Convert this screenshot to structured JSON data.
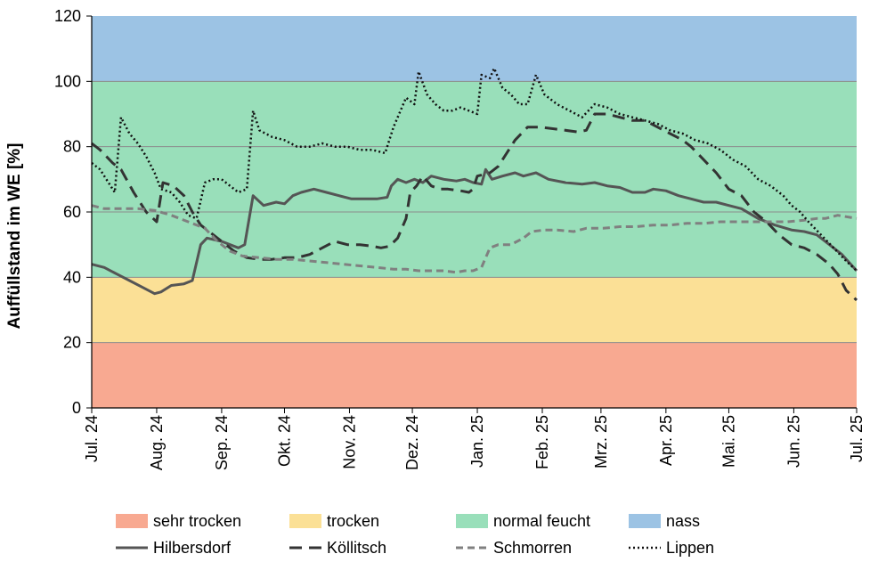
{
  "chart_data": {
    "type": "line",
    "title": "",
    "ylabel": "Auffüllstand im WE [%]",
    "xlabel": "",
    "ylim": [
      0,
      120
    ],
    "yticks": [
      0,
      20,
      40,
      60,
      80,
      100,
      120
    ],
    "xlim": [
      0,
      365
    ],
    "xticks": [
      {
        "day": 0,
        "label": "Jul. 24"
      },
      {
        "day": 31,
        "label": "Aug. 24"
      },
      {
        "day": 62,
        "label": "Sep. 24"
      },
      {
        "day": 92,
        "label": "Okt. 24"
      },
      {
        "day": 123,
        "label": "Nov. 24"
      },
      {
        "day": 153,
        "label": "Dez. 24"
      },
      {
        "day": 184,
        "label": "Jan. 25"
      },
      {
        "day": 215,
        "label": "Feb. 25"
      },
      {
        "day": 243,
        "label": "Mrz. 25"
      },
      {
        "day": 274,
        "label": "Apr. 25"
      },
      {
        "day": 304,
        "label": "Mai. 25"
      },
      {
        "day": 335,
        "label": "Jun. 25"
      },
      {
        "day": 365,
        "label": "Jul. 25"
      }
    ],
    "bands": [
      {
        "name": "sehr trocken",
        "from": 0,
        "to": 20,
        "color": "#f8a991"
      },
      {
        "name": "trocken",
        "from": 20,
        "to": 40,
        "color": "#fbe096"
      },
      {
        "name": "normal feucht",
        "from": 40,
        "to": 100,
        "color": "#99dfba"
      },
      {
        "name": "nass",
        "from": 100,
        "to": 120,
        "color": "#9cc3e4"
      }
    ],
    "series": [
      {
        "name": "Hilbersdorf",
        "color": "#555555",
        "dash": "",
        "width": 3,
        "points": [
          [
            0,
            44
          ],
          [
            6,
            43
          ],
          [
            12,
            41
          ],
          [
            18,
            39
          ],
          [
            24,
            37
          ],
          [
            30,
            35
          ],
          [
            33,
            35.5
          ],
          [
            38,
            37.5
          ],
          [
            44,
            38
          ],
          [
            48,
            39
          ],
          [
            52,
            50
          ],
          [
            55,
            52
          ],
          [
            62,
            51
          ],
          [
            66,
            50
          ],
          [
            70,
            49
          ],
          [
            73,
            50
          ],
          [
            77,
            65
          ],
          [
            82,
            62
          ],
          [
            88,
            63
          ],
          [
            92,
            62.5
          ],
          [
            96,
            65
          ],
          [
            100,
            66
          ],
          [
            106,
            67
          ],
          [
            112,
            66
          ],
          [
            118,
            65
          ],
          [
            124,
            64
          ],
          [
            130,
            64
          ],
          [
            136,
            64
          ],
          [
            141,
            64.5
          ],
          [
            143,
            68
          ],
          [
            146,
            70
          ],
          [
            150,
            69
          ],
          [
            154,
            70
          ],
          [
            158,
            69
          ],
          [
            162,
            71
          ],
          [
            168,
            70
          ],
          [
            174,
            69.5
          ],
          [
            178,
            70
          ],
          [
            182,
            69
          ],
          [
            186,
            68.5
          ],
          [
            188,
            73
          ],
          [
            191,
            70
          ],
          [
            196,
            71
          ],
          [
            202,
            72
          ],
          [
            206,
            71
          ],
          [
            212,
            72
          ],
          [
            218,
            70
          ],
          [
            226,
            69
          ],
          [
            234,
            68.5
          ],
          [
            240,
            69
          ],
          [
            246,
            68
          ],
          [
            252,
            67.5
          ],
          [
            258,
            66
          ],
          [
            264,
            66
          ],
          [
            268,
            67
          ],
          [
            274,
            66.5
          ],
          [
            280,
            65
          ],
          [
            286,
            64
          ],
          [
            292,
            63
          ],
          [
            298,
            63
          ],
          [
            304,
            62
          ],
          [
            310,
            61
          ],
          [
            318,
            58
          ],
          [
            326,
            56
          ],
          [
            334,
            54.5
          ],
          [
            340,
            54
          ],
          [
            346,
            53
          ],
          [
            352,
            50
          ],
          [
            358,
            47
          ],
          [
            365,
            42
          ]
        ]
      },
      {
        "name": "Köllitsch",
        "color": "#333333",
        "dash": "14 8",
        "width": 3,
        "points": [
          [
            0,
            81
          ],
          [
            4,
            79
          ],
          [
            10,
            75
          ],
          [
            14,
            73
          ],
          [
            20,
            66
          ],
          [
            26,
            60
          ],
          [
            31,
            57
          ],
          [
            34,
            69
          ],
          [
            39,
            68
          ],
          [
            44,
            65
          ],
          [
            48,
            60
          ],
          [
            52,
            56
          ],
          [
            56,
            54
          ],
          [
            60,
            52
          ],
          [
            64,
            50
          ],
          [
            68,
            48
          ],
          [
            74,
            46
          ],
          [
            80,
            45.5
          ],
          [
            86,
            45.5
          ],
          [
            92,
            46
          ],
          [
            98,
            46
          ],
          [
            104,
            47
          ],
          [
            110,
            49
          ],
          [
            116,
            51
          ],
          [
            122,
            50
          ],
          [
            128,
            50
          ],
          [
            134,
            49.5
          ],
          [
            138,
            49
          ],
          [
            142,
            49.5
          ],
          [
            146,
            52
          ],
          [
            150,
            58
          ],
          [
            152,
            66
          ],
          [
            155,
            68
          ],
          [
            158,
            71
          ],
          [
            162,
            68
          ],
          [
            166,
            67
          ],
          [
            170,
            67
          ],
          [
            176,
            66.5
          ],
          [
            180,
            66
          ],
          [
            182,
            67
          ],
          [
            184,
            71
          ],
          [
            190,
            72
          ],
          [
            194,
            74
          ],
          [
            198,
            78
          ],
          [
            202,
            82
          ],
          [
            205,
            84
          ],
          [
            208,
            86
          ],
          [
            214,
            86
          ],
          [
            220,
            85.5
          ],
          [
            226,
            85
          ],
          [
            232,
            84.5
          ],
          [
            236,
            85
          ],
          [
            240,
            90
          ],
          [
            246,
            90
          ],
          [
            252,
            89
          ],
          [
            258,
            88
          ],
          [
            264,
            88
          ],
          [
            270,
            86
          ],
          [
            276,
            84
          ],
          [
            282,
            82
          ],
          [
            286,
            80
          ],
          [
            292,
            76
          ],
          [
            298,
            72
          ],
          [
            304,
            67
          ],
          [
            310,
            65
          ],
          [
            316,
            60
          ],
          [
            322,
            57
          ],
          [
            328,
            53
          ],
          [
            334,
            50
          ],
          [
            340,
            49
          ],
          [
            346,
            47
          ],
          [
            352,
            44
          ],
          [
            356,
            41
          ],
          [
            360,
            36
          ],
          [
            365,
            33
          ]
        ]
      },
      {
        "name": "Schmorren",
        "color": "#808080",
        "dash": "8 5",
        "width": 3,
        "points": [
          [
            0,
            62
          ],
          [
            6,
            61
          ],
          [
            14,
            61
          ],
          [
            22,
            61
          ],
          [
            30,
            60.5
          ],
          [
            38,
            59
          ],
          [
            46,
            57
          ],
          [
            54,
            55
          ],
          [
            60,
            51
          ],
          [
            66,
            48
          ],
          [
            72,
            46.5
          ],
          [
            80,
            46
          ],
          [
            88,
            45.5
          ],
          [
            96,
            45.5
          ],
          [
            104,
            45
          ],
          [
            112,
            44.5
          ],
          [
            120,
            44
          ],
          [
            128,
            43.5
          ],
          [
            136,
            43
          ],
          [
            144,
            42.5
          ],
          [
            150,
            42.5
          ],
          [
            156,
            42
          ],
          [
            162,
            42
          ],
          [
            168,
            42
          ],
          [
            174,
            41.5
          ],
          [
            178,
            42
          ],
          [
            182,
            42
          ],
          [
            186,
            43
          ],
          [
            190,
            49
          ],
          [
            194,
            50
          ],
          [
            200,
            50
          ],
          [
            206,
            52
          ],
          [
            210,
            54
          ],
          [
            216,
            54.5
          ],
          [
            222,
            54.5
          ],
          [
            230,
            54
          ],
          [
            236,
            55
          ],
          [
            244,
            55
          ],
          [
            252,
            55.5
          ],
          [
            260,
            55.5
          ],
          [
            268,
            56
          ],
          [
            276,
            56
          ],
          [
            284,
            56.5
          ],
          [
            292,
            56.5
          ],
          [
            300,
            57
          ],
          [
            308,
            57
          ],
          [
            316,
            57
          ],
          [
            324,
            57
          ],
          [
            332,
            57
          ],
          [
            340,
            57.5
          ],
          [
            346,
            58
          ],
          [
            350,
            58
          ],
          [
            356,
            59
          ],
          [
            365,
            58
          ]
        ]
      },
      {
        "name": "Lippen",
        "color": "#111111",
        "dash": "2 3",
        "width": 2.5,
        "points": [
          [
            0,
            75
          ],
          [
            4,
            73
          ],
          [
            8,
            69
          ],
          [
            11,
            66
          ],
          [
            14,
            89
          ],
          [
            18,
            84
          ],
          [
            22,
            81
          ],
          [
            26,
            77
          ],
          [
            30,
            72
          ],
          [
            33,
            67
          ],
          [
            38,
            66
          ],
          [
            42,
            63
          ],
          [
            46,
            59
          ],
          [
            50,
            58
          ],
          [
            54,
            69
          ],
          [
            58,
            70
          ],
          [
            62,
            70
          ],
          [
            66,
            68
          ],
          [
            70,
            66
          ],
          [
            74,
            67
          ],
          [
            77,
            91
          ],
          [
            80,
            85
          ],
          [
            86,
            83
          ],
          [
            92,
            82
          ],
          [
            98,
            80
          ],
          [
            104,
            80
          ],
          [
            110,
            81
          ],
          [
            116,
            80
          ],
          [
            122,
            80
          ],
          [
            128,
            79
          ],
          [
            134,
            79
          ],
          [
            140,
            78
          ],
          [
            144,
            86
          ],
          [
            148,
            92
          ],
          [
            150,
            95
          ],
          [
            154,
            93
          ],
          [
            156,
            103
          ],
          [
            160,
            96
          ],
          [
            164,
            93
          ],
          [
            168,
            91
          ],
          [
            172,
            91
          ],
          [
            176,
            92
          ],
          [
            180,
            91
          ],
          [
            184,
            90
          ],
          [
            186,
            102
          ],
          [
            190,
            101
          ],
          [
            192,
            104
          ],
          [
            196,
            98
          ],
          [
            200,
            96
          ],
          [
            204,
            93
          ],
          [
            208,
            93
          ],
          [
            212,
            102
          ],
          [
            216,
            96
          ],
          [
            222,
            93
          ],
          [
            228,
            91
          ],
          [
            234,
            89
          ],
          [
            240,
            93
          ],
          [
            246,
            92
          ],
          [
            252,
            90
          ],
          [
            258,
            89
          ],
          [
            264,
            88
          ],
          [
            270,
            87
          ],
          [
            276,
            85
          ],
          [
            282,
            84
          ],
          [
            288,
            82
          ],
          [
            294,
            81
          ],
          [
            300,
            79
          ],
          [
            306,
            76
          ],
          [
            312,
            74
          ],
          [
            318,
            70
          ],
          [
            324,
            68
          ],
          [
            330,
            65
          ],
          [
            334,
            62
          ],
          [
            338,
            60
          ],
          [
            342,
            57
          ],
          [
            348,
            53
          ],
          [
            354,
            49
          ],
          [
            360,
            45
          ],
          [
            365,
            42
          ]
        ]
      }
    ],
    "legend": {
      "position": "bottom",
      "rows": [
        [
          "sehr trocken",
          "trocken",
          "normal feucht",
          "nass"
        ],
        [
          "Hilbersdorf",
          "Köllitsch",
          "Schmorren",
          "Lippen"
        ]
      ]
    }
  }
}
